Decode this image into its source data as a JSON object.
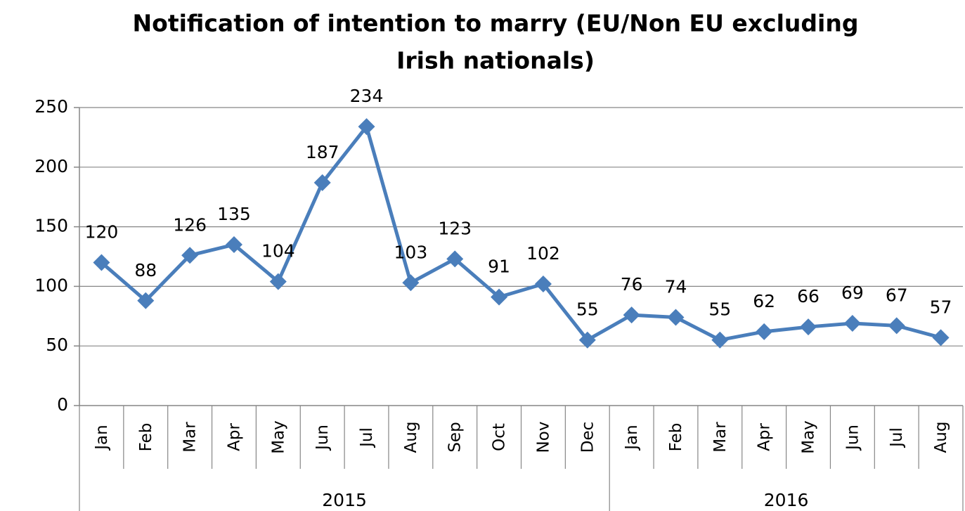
{
  "chart_data": {
    "type": "line",
    "title": [
      "Notification of intention to marry (EU/Non EU excluding",
      "Irish nationals)"
    ],
    "groups": [
      {
        "name": "2015",
        "categories": [
          "Jan",
          "Feb",
          "Mar",
          "Apr",
          "May",
          "Jun",
          "Jul",
          "Aug",
          "Sep",
          "Oct",
          "Nov",
          "Dec"
        ]
      },
      {
        "name": "2016",
        "categories": [
          "Jan",
          "Feb",
          "Mar",
          "Apr",
          "May",
          "Jun",
          "Jul",
          "Aug"
        ]
      }
    ],
    "values": [
      120,
      88,
      126,
      135,
      104,
      187,
      234,
      103,
      123,
      91,
      102,
      55,
      76,
      74,
      55,
      62,
      66,
      69,
      67,
      57
    ],
    "color": "#4a7ebb",
    "ylim": [
      0,
      250
    ],
    "yticks": [
      0,
      50,
      100,
      150,
      200,
      250
    ],
    "grid": true
  }
}
